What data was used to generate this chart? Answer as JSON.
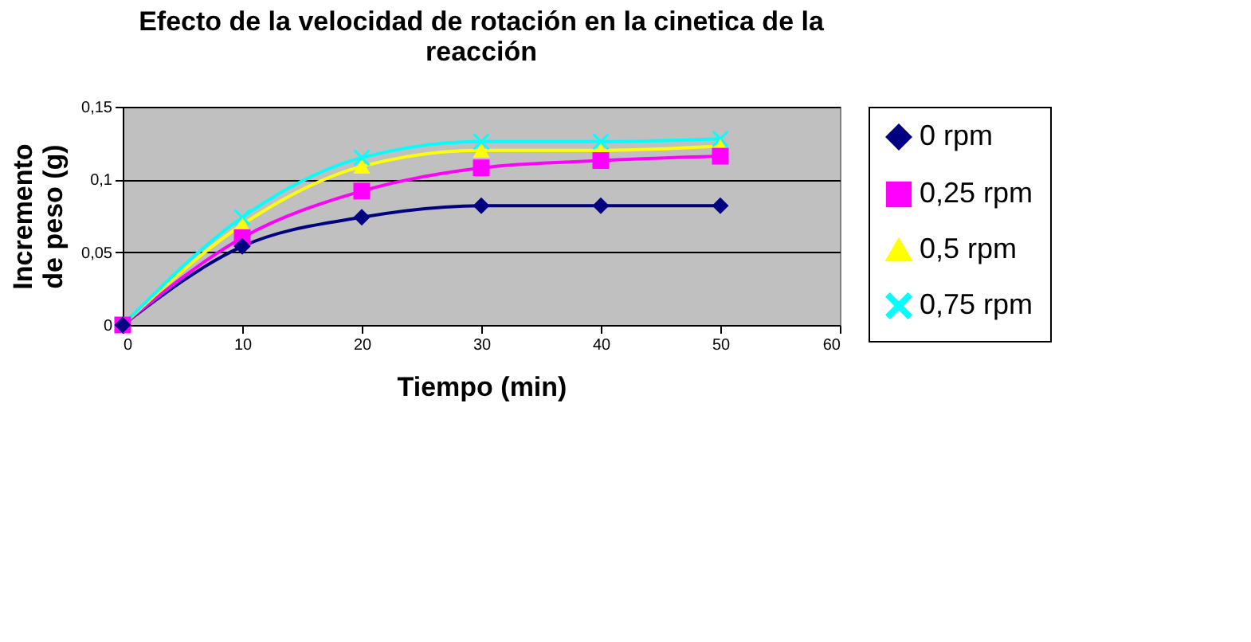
{
  "chart_data": {
    "type": "line",
    "title": "Efecto de la velocidad de rotación en la cinetica de la reacción",
    "xlabel": "Tiempo (min)",
    "ylabel": "Incremento de peso (g)",
    "x": [
      0,
      10,
      20,
      30,
      40,
      50
    ],
    "series": [
      {
        "name": "0 rpm",
        "color": "#000080",
        "marker": "diamond",
        "values": [
          0,
          0.054,
          0.074,
          0.082,
          0.082,
          0.082
        ]
      },
      {
        "name": "0,25 rpm",
        "color": "#ff00ff",
        "marker": "square",
        "values": [
          0,
          0.06,
          0.092,
          0.108,
          0.113,
          0.116
        ]
      },
      {
        "name": "0,5 rpm",
        "color": "#ffff00",
        "marker": "triangle",
        "values": [
          0,
          0.069,
          0.109,
          0.12,
          0.12,
          0.123
        ]
      },
      {
        "name": "0,75 rpm",
        "color": "#00ffff",
        "marker": "cross",
        "values": [
          0,
          0.074,
          0.115,
          0.126,
          0.126,
          0.128
        ]
      }
    ],
    "xlim": [
      0,
      60
    ],
    "xticks": [
      0,
      10,
      20,
      30,
      40,
      50,
      60
    ],
    "ylim": [
      0,
      0.15
    ],
    "yticks": [
      0,
      {
        "value": 0.05,
        "label": "0,05"
      },
      {
        "value": 0.1,
        "label": "0,1"
      },
      {
        "value": 0.15,
        "label": "0,15"
      }
    ],
    "grid": "y",
    "legend": "right",
    "line_style": "solid"
  }
}
